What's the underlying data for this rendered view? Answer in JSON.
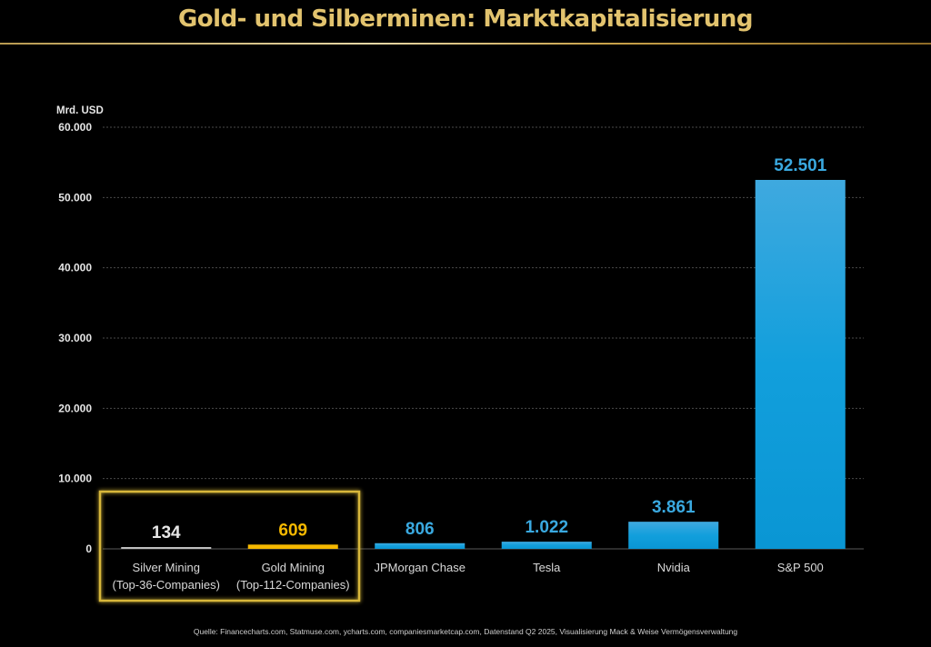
{
  "title": "Gold- und Silberminen: Marktkapitalisierung",
  "source": "Quelle: Financecharts.com, Statmuse.com, ycharts.com, companiesmarketcap.com, Datenstand  Q2 2025, Visualisierung Mack & Weise Vermögensverwaltung",
  "colors": {
    "title": "#e2c36e",
    "silver": "#bfbfbf",
    "gold": "#f5b800",
    "blue": "#1ea0dc",
    "blue_label": "#3aa9e0",
    "highlight_box": "#d8b73a",
    "silver_label": "#e6e6e6",
    "gold_label": "#f5b800"
  },
  "chart_data": {
    "type": "bar",
    "title": "Gold- und Silberminen: Marktkapitalisierung",
    "xlabel": "",
    "ylabel": "Mrd. USD",
    "ylim": [
      0,
      60000
    ],
    "yticks": [
      0,
      10000,
      20000,
      30000,
      40000,
      50000,
      60000
    ],
    "ytick_labels": [
      "0",
      "10.000",
      "20.000",
      "30.000",
      "40.000",
      "50.000",
      "60.000"
    ],
    "grid": true,
    "legend": "none",
    "categories": [
      [
        "Silver Mining",
        "(Top-36-Companies)"
      ],
      [
        "Gold Mining",
        "(Top-112-Companies)"
      ],
      [
        "JPMorgan Chase"
      ],
      [
        "Tesla"
      ],
      [
        "Nvidia"
      ],
      [
        "S&P 500"
      ]
    ],
    "values": [
      134,
      609,
      806,
      1022,
      3861,
      52501
    ],
    "value_labels": [
      "134",
      "609",
      "806",
      "1.022",
      "3.861",
      "52.501"
    ],
    "bar_colors": [
      "silver",
      "gold",
      "blue",
      "blue",
      "blue",
      "blue"
    ],
    "highlighted_categories": [
      0,
      1
    ]
  }
}
